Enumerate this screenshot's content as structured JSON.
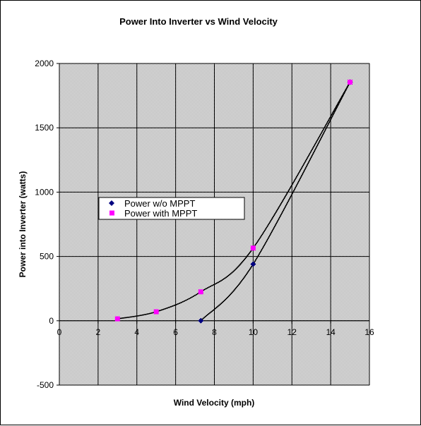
{
  "chart_data": {
    "type": "scatter",
    "title": "Power Into Inverter vs Wind Velocity",
    "xlabel": "Wind Velocity (mph)",
    "ylabel": "Power into Inverter (watts)",
    "xlim": [
      0,
      16
    ],
    "ylim": [
      -500,
      2000
    ],
    "xticks": [
      0,
      2,
      4,
      6,
      8,
      10,
      12,
      14,
      16
    ],
    "yticks": [
      -500,
      0,
      500,
      1000,
      1500,
      2000
    ],
    "grid": true,
    "plot_background": "#c0c0c0",
    "legend_position": "center-left",
    "series": [
      {
        "name": "Power w/o MPPT",
        "marker": "diamond",
        "color": "#000080",
        "x": [
          7.3,
          10,
          15
        ],
        "y": [
          0,
          440,
          1855
        ]
      },
      {
        "name": "Power with MPPT",
        "marker": "square",
        "color": "#ff00ff",
        "x": [
          3,
          5,
          7.3,
          10,
          15
        ],
        "y": [
          15,
          70,
          225,
          565,
          1855
        ]
      }
    ]
  }
}
